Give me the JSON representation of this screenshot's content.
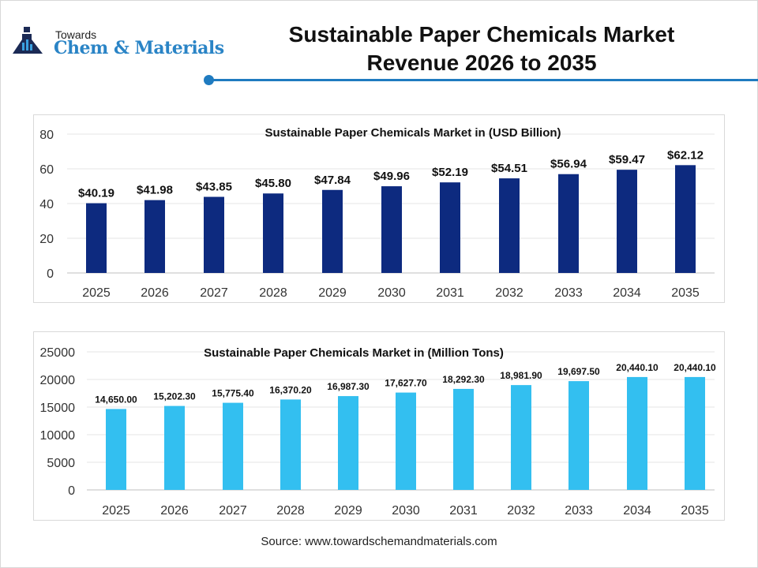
{
  "logo": {
    "small": "Towards",
    "big": "Chem & Materials"
  },
  "title_lines": [
    "Sustainable Paper Chemicals Market",
    "Revenue 2026 to 2035"
  ],
  "source": "Source: www.towardschemandmaterials.com",
  "chart_data": [
    {
      "type": "bar",
      "title": "Sustainable Paper Chemicals Market in (USD Billion)",
      "categories": [
        "2025",
        "2026",
        "2027",
        "2028",
        "2029",
        "2030",
        "2031",
        "2032",
        "2033",
        "2034",
        "2035"
      ],
      "values": [
        40.19,
        41.98,
        43.85,
        45.8,
        47.84,
        49.96,
        52.19,
        54.51,
        56.94,
        59.47,
        62.12
      ],
      "data_labels": [
        "$40.19",
        "$41.98",
        "$43.85",
        "$45.80",
        "$47.84",
        "$49.96",
        "$52.19",
        "$54.51",
        "$56.94",
        "$59.47",
        "$62.12"
      ],
      "yticks": [
        "0",
        "20",
        "40",
        "60",
        "80"
      ],
      "ylim": [
        0,
        80
      ],
      "grid": true,
      "color": "#0d2a7f"
    },
    {
      "type": "bar",
      "title": "Sustainable Paper Chemicals Market in (Million Tons)",
      "categories": [
        "2025",
        "2026",
        "2027",
        "2028",
        "2029",
        "2030",
        "2031",
        "2032",
        "2033",
        "2034",
        "2035"
      ],
      "values": [
        14650.0,
        15202.3,
        15775.4,
        16370.2,
        16987.3,
        17627.7,
        18292.3,
        18981.9,
        19697.5,
        20440.1,
        20440.1
      ],
      "data_labels": [
        "14,650.00",
        "15,202.30",
        "15,775.40",
        "16,370.20",
        "16,987.30",
        "17,627.70",
        "18,292.30",
        "18,981.90",
        "19,697.50",
        "20,440.10",
        "20,440.10"
      ],
      "yticks": [
        "0",
        "5000",
        "10000",
        "15000",
        "20000",
        "25000"
      ],
      "ylim": [
        0,
        25000
      ],
      "grid": true,
      "color": "#33bff0"
    }
  ]
}
